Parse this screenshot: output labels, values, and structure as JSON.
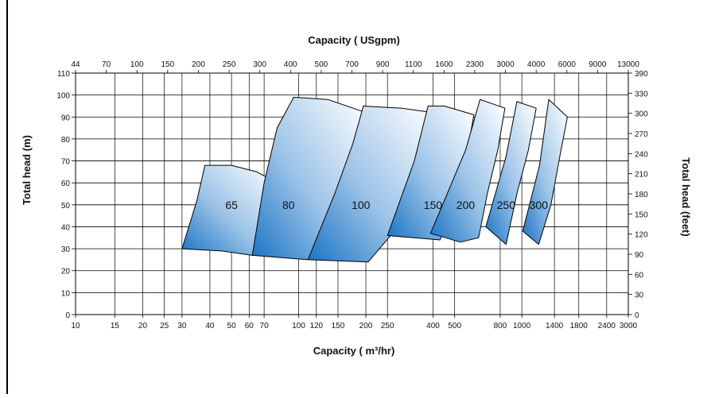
{
  "chart_data": {
    "type": "area",
    "title": "Capacity ( USgpm)",
    "xlabel": "Capacity ( m³/hr)",
    "ylabel": "Total head (m)",
    "y2label": "Total head (feet)",
    "x_scale": "log",
    "xlim": [
      10,
      3000
    ],
    "ylim": [
      0,
      110
    ],
    "grid": true,
    "x_ticks": [
      "10",
      "15",
      "20",
      "25",
      "30",
      "40",
      "50",
      "60",
      "70",
      "100",
      "120",
      "150",
      "200",
      "250",
      "400",
      "500",
      "800",
      "1000",
      "1400",
      "1800",
      "2400",
      "3000"
    ],
    "x_top_ticks": [
      "44",
      "70",
      "100",
      "150",
      "200",
      "250",
      "300",
      "400",
      "500",
      "700",
      "900",
      "1100",
      "1600",
      "2300",
      "3000",
      "4000",
      "6000",
      "9000",
      "13000"
    ],
    "y_ticks": [
      "0",
      "10",
      "20",
      "30",
      "40",
      "50",
      "60",
      "70",
      "80",
      "90",
      "100",
      "110"
    ],
    "y2_ticks": [
      "0",
      "30",
      "60",
      "90",
      "120",
      "150",
      "180",
      "210",
      "240",
      "270",
      "300",
      "330",
      "390"
    ],
    "series": [
      {
        "name": "65",
        "label_at": [
          50,
          50
        ],
        "points": [
          [
            30,
            30
          ],
          [
            35,
            52
          ],
          [
            38,
            68
          ],
          [
            50,
            68
          ],
          [
            65,
            65
          ],
          [
            80,
            60
          ],
          [
            72,
            40
          ],
          [
            62,
            27
          ],
          [
            45,
            29
          ],
          [
            30,
            30
          ]
        ]
      },
      {
        "name": "80",
        "label_at": [
          90,
          50
        ],
        "points": [
          [
            62,
            27
          ],
          [
            70,
            60
          ],
          [
            80,
            85
          ],
          [
            95,
            99
          ],
          [
            135,
            98
          ],
          [
            200,
            92
          ],
          [
            165,
            65
          ],
          [
            135,
            42
          ],
          [
            110,
            25
          ],
          [
            62,
            27
          ]
        ]
      },
      {
        "name": "100",
        "label_at": [
          190,
          50
        ],
        "points": [
          [
            110,
            25
          ],
          [
            145,
            55
          ],
          [
            175,
            78
          ],
          [
            195,
            95
          ],
          [
            290,
            94
          ],
          [
            400,
            92
          ],
          [
            340,
            65
          ],
          [
            290,
            42
          ],
          [
            205,
            24
          ],
          [
            110,
            25
          ]
        ]
      },
      {
        "name": "150",
        "label_at": [
          400,
          50
        ],
        "points": [
          [
            250,
            36
          ],
          [
            330,
            70
          ],
          [
            380,
            95
          ],
          [
            450,
            95
          ],
          [
            610,
            91
          ],
          [
            560,
            70
          ],
          [
            500,
            52
          ],
          [
            430,
            34
          ],
          [
            250,
            36
          ]
        ]
      },
      {
        "name": "200",
        "label_at": [
          560,
          50
        ],
        "points": [
          [
            390,
            37
          ],
          [
            560,
            75
          ],
          [
            650,
            98
          ],
          [
            840,
            94
          ],
          [
            780,
            75
          ],
          [
            700,
            55
          ],
          [
            640,
            35
          ],
          [
            530,
            33
          ],
          [
            390,
            37
          ]
        ]
      },
      {
        "name": "250",
        "label_at": [
          850,
          50
        ],
        "points": [
          [
            690,
            40
          ],
          [
            850,
            72
          ],
          [
            950,
            97
          ],
          [
            1160,
            94
          ],
          [
            1070,
            75
          ],
          [
            950,
            55
          ],
          [
            850,
            32
          ],
          [
            690,
            40
          ]
        ]
      },
      {
        "name": "300",
        "label_at": [
          1190,
          50
        ],
        "points": [
          [
            1010,
            38
          ],
          [
            1200,
            68
          ],
          [
            1320,
            98
          ],
          [
            1600,
            90
          ],
          [
            1480,
            72
          ],
          [
            1350,
            50
          ],
          [
            1190,
            32
          ],
          [
            1010,
            38
          ]
        ]
      }
    ],
    "colors": {
      "fill_dark": "#1a74c4",
      "fill_mid": "#9cc3e8",
      "fill_light": "#ffffff",
      "stroke": "#000000",
      "grid": "#000000"
    }
  }
}
